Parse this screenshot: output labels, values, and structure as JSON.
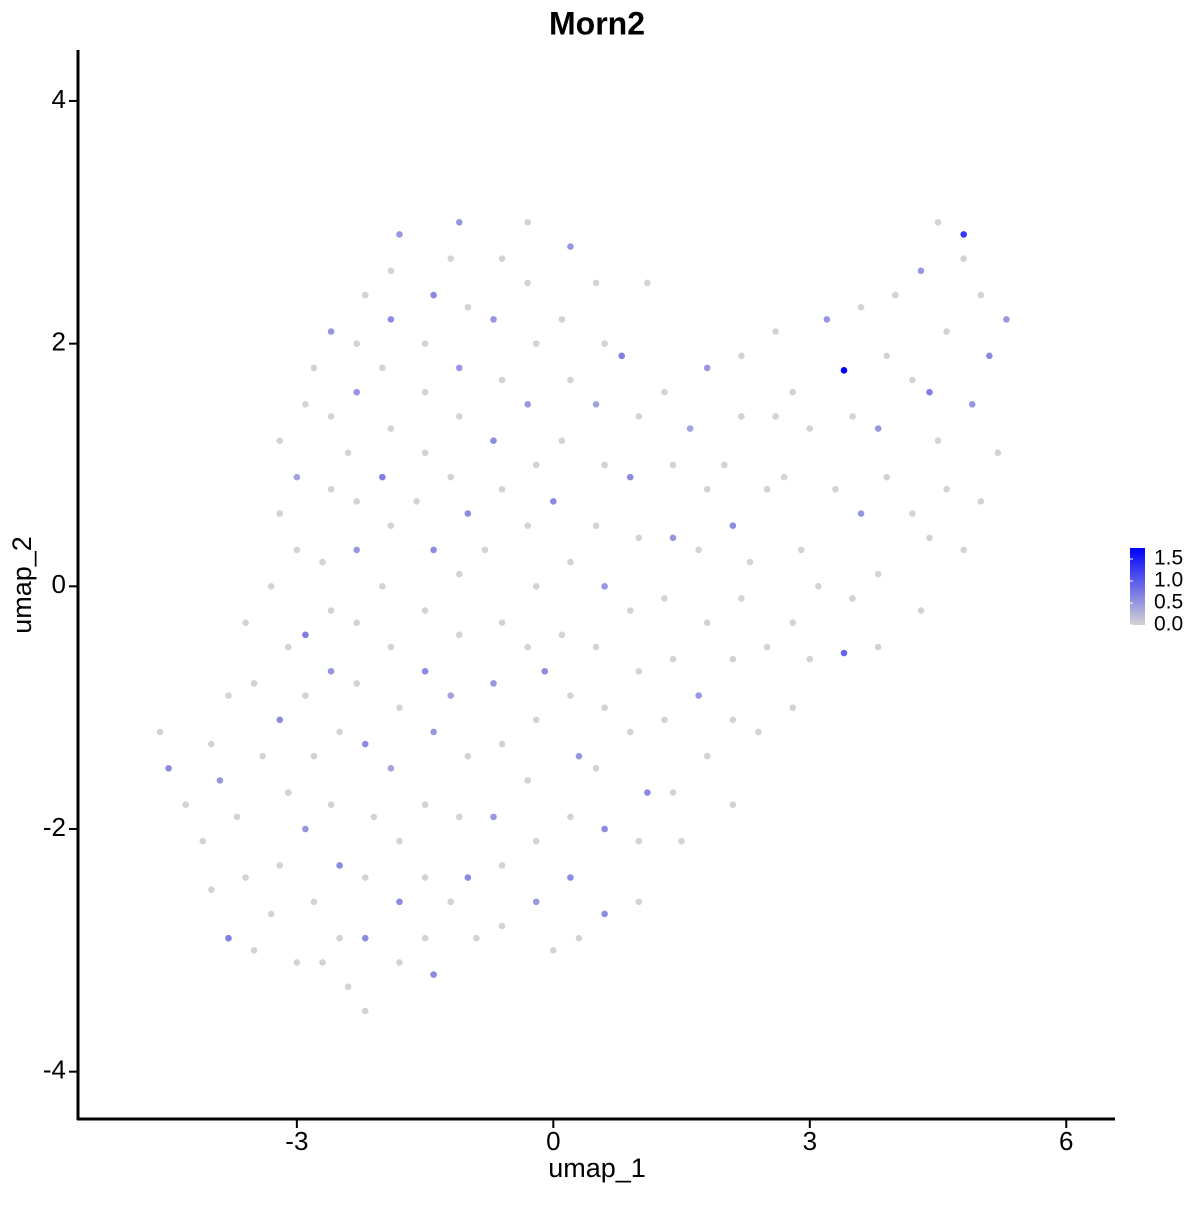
{
  "chart_data": {
    "type": "scatter",
    "title": "Morn2",
    "x_label": "umap_1",
    "y_label": "umap_2",
    "xlim": [
      -5.56,
      6.57
    ],
    "ylim": [
      -4.39,
      4.42
    ],
    "xticks": [
      -3,
      0,
      3,
      6
    ],
    "yticks": [
      -4,
      -2,
      0,
      2,
      4
    ],
    "low_color": "#d3d3d3",
    "high_color": "#0000ff",
    "color_lim": [
      0,
      1.75
    ],
    "color_ticks": [
      {
        "value": 0,
        "label": "0.0"
      },
      {
        "value": 0.5,
        "label": "0.5"
      },
      {
        "value": 1,
        "label": "1.0"
      },
      {
        "value": 1.5,
        "label": "1.5"
      }
    ],
    "x": [
      -4.6,
      -4.5,
      -4.3,
      -4.1,
      -3.9,
      -4.0,
      -3.8,
      -3.5,
      -3.6,
      -3.7,
      -3.4,
      -3.5,
      -3.6,
      -3.3,
      -3.1,
      -3.2,
      -3.1,
      -3.2,
      -3.3,
      -3.0,
      -2.8,
      -2.9,
      -2.8,
      -2.9,
      -2.9,
      -3.0,
      -3.2,
      -3.0,
      -3.2,
      -2.9,
      -2.8,
      -2.6,
      -2.6,
      -2.6,
      -2.7,
      -2.6,
      -2.6,
      -2.5,
      -2.6,
      -2.5,
      -2.5,
      -2.4,
      -2.2,
      -2.2,
      -2.2,
      -2.1,
      -2.2,
      -2.3,
      -2.3,
      -2.3,
      -2.3,
      -2.4,
      -2.3,
      -2.3,
      -2.2,
      -1.9,
      -1.8,
      -1.9,
      -2.0,
      -1.9,
      -2.0,
      -1.9,
      -2.0,
      -1.9,
      -1.8,
      -1.9,
      -1.8,
      -1.8,
      -1.8,
      -1.5,
      -1.4,
      -1.5,
      -1.5,
      -1.4,
      -1.5,
      -1.5,
      -1.4,
      -1.6,
      -1.5,
      -1.5,
      -1.5,
      -1.4,
      -1.2,
      -1.1,
      -1.0,
      -1.1,
      -1.1,
      -1.2,
      -1.0,
      -1.1,
      -1.1,
      -1.2,
      -1.0,
      -1.1,
      -1.0,
      -0.9,
      -0.6,
      -0.6,
      -0.7,
      -0.6,
      -0.7,
      -0.6,
      -0.8,
      -0.6,
      -0.7,
      -0.6,
      -0.7,
      -0.6,
      -0.3,
      -0.3,
      -0.2,
      -0.3,
      -0.2,
      -0.3,
      -0.2,
      -0.3,
      -0.1,
      -0.2,
      -0.3,
      -0.2,
      -0.2,
      0.0,
      0.3,
      0.2,
      0.2,
      0.3,
      0.2,
      0.1,
      0.2,
      0.0,
      0.1,
      0.2,
      0.1,
      0.2,
      0.5,
      0.6,
      0.5,
      0.6,
      0.5,
      0.6,
      0.5,
      0.6,
      0.5,
      0.6,
      0.6,
      1.0,
      1.0,
      1.1,
      0.9,
      1.0,
      0.9,
      1.0,
      0.9,
      1.0,
      0.8,
      1.1,
      1.3,
      1.4,
      1.4,
      1.3,
      1.4,
      1.3,
      1.4,
      1.5,
      1.8,
      1.7,
      1.8,
      1.7,
      1.8,
      1.6,
      2.0,
      2.1,
      2.2,
      2.1,
      2.1,
      2.1,
      2.4,
      2.5,
      2.3,
      2.5,
      2.2,
      1.8,
      2.2,
      2.6,
      2.6,
      2.8,
      2.7,
      2.9,
      2.8,
      2.8,
      3.0,
      3.1,
      3.3,
      3.0,
      3.2,
      3.4,
      3.6,
      3.5,
      3.6,
      3.4,
      3.5,
      3.8,
      3.8,
      3.9,
      3.8,
      3.9,
      4.0,
      4.2,
      4.2,
      4.3,
      4.4,
      4.5,
      4.3,
      4.5,
      4.6,
      4.8,
      4.8,
      4.6,
      4.8,
      4.9,
      5.0,
      5.1,
      5.0,
      5.2,
      5.3,
      4.4,
      -3.8,
      -4.0,
      -2.7,
      -1.2
    ],
    "y": [
      -1.2,
      -1.5,
      -1.8,
      -2.1,
      -1.6,
      -2.5,
      -2.9,
      -3.0,
      -2.4,
      -1.9,
      -1.4,
      -0.8,
      -0.3,
      0.0,
      -0.5,
      -1.1,
      -1.7,
      -2.3,
      -2.7,
      -3.1,
      -2.6,
      -2.0,
      -1.4,
      -0.9,
      -0.4,
      0.3,
      0.6,
      0.9,
      1.2,
      1.5,
      1.8,
      2.1,
      1.4,
      0.8,
      0.2,
      -0.2,
      -0.7,
      -1.2,
      -1.8,
      -2.3,
      -2.9,
      -3.3,
      -3.5,
      -2.9,
      -2.4,
      -1.9,
      -1.3,
      -0.8,
      -0.3,
      0.3,
      0.7,
      1.1,
      1.6,
      2.0,
      2.4,
      2.6,
      2.9,
      2.2,
      1.8,
      1.3,
      0.9,
      0.5,
      0.0,
      -0.5,
      -1.0,
      -1.5,
      -2.1,
      -2.6,
      -3.1,
      -2.9,
      -3.2,
      -2.4,
      -1.8,
      -1.2,
      -0.7,
      -0.2,
      0.3,
      0.7,
      1.1,
      1.6,
      2.0,
      2.4,
      2.7,
      3.0,
      2.3,
      1.8,
      1.4,
      0.9,
      0.6,
      0.1,
      -0.4,
      -0.9,
      -1.4,
      -1.9,
      -2.4,
      -2.9,
      -2.8,
      -2.3,
      -1.9,
      -1.3,
      -0.8,
      -0.3,
      0.3,
      0.8,
      1.2,
      1.7,
      2.2,
      2.7,
      3.0,
      2.5,
      2.0,
      1.5,
      1.0,
      0.5,
      0.0,
      -0.5,
      -0.7,
      -1.1,
      -1.6,
      -2.1,
      -2.6,
      -3.0,
      -2.9,
      -2.4,
      -1.9,
      -1.4,
      -0.9,
      -0.4,
      0.2,
      0.7,
      1.2,
      1.7,
      2.2,
      2.8,
      2.5,
      2.0,
      1.5,
      1.0,
      0.5,
      0.0,
      -0.5,
      -1.0,
      -1.5,
      -2.0,
      -2.7,
      -2.6,
      -2.1,
      -1.7,
      -1.2,
      -0.7,
      -0.2,
      0.4,
      0.9,
      1.4,
      1.9,
      2.5,
      1.6,
      1.0,
      0.4,
      -0.1,
      -0.6,
      -1.1,
      -1.7,
      -2.1,
      -1.4,
      -0.9,
      -0.3,
      0.3,
      0.8,
      1.3,
      1.0,
      0.5,
      -0.1,
      -0.6,
      -1.1,
      -1.8,
      -1.2,
      -0.5,
      0.2,
      0.8,
      1.4,
      1.8,
      1.9,
      1.4,
      2.1,
      1.6,
      0.9,
      0.3,
      -0.3,
      -1.0,
      -0.6,
      0.0,
      0.8,
      1.3,
      2.2,
      1.78,
      2.3,
      1.4,
      0.6,
      -0.55,
      -0.1,
      -0.5,
      0.1,
      0.9,
      1.3,
      1.9,
      2.4,
      1.7,
      0.6,
      -0.2,
      0.4,
      1.2,
      2.6,
      3.0,
      2.1,
      2.9,
      2.7,
      0.8,
      0.3,
      1.5,
      2.4,
      1.9,
      0.7,
      1.1,
      2.2,
      1.6,
      -0.9,
      -1.3,
      -3.1,
      -2.6
    ],
    "values": [
      0,
      0.6,
      0,
      0,
      0.5,
      0,
      0.7,
      0,
      0,
      0,
      0,
      0,
      0,
      0,
      0,
      0.6,
      0,
      0,
      0,
      0,
      0,
      0.5,
      0,
      0,
      0.7,
      0,
      0,
      0.4,
      0,
      0,
      0,
      0.5,
      0,
      0,
      0,
      0,
      0.5,
      0,
      0,
      0.6,
      0,
      0,
      0,
      0.6,
      0,
      0,
      0.6,
      0,
      0,
      0.5,
      0,
      0,
      0.5,
      0,
      0,
      0,
      0.5,
      0.6,
      0,
      0,
      0.7,
      0,
      0,
      0,
      0,
      0.4,
      0,
      0.6,
      0,
      0,
      0.6,
      0,
      0,
      0.5,
      0.6,
      0,
      0.6,
      0,
      0,
      0,
      0,
      0.6,
      0,
      0.5,
      0,
      0.5,
      0,
      0,
      0.6,
      0,
      0,
      0.4,
      0,
      0,
      0.6,
      0,
      0,
      0,
      0.5,
      0,
      0.5,
      0,
      0,
      0,
      0.6,
      0,
      0.5,
      0,
      0,
      0,
      0,
      0.5,
      0,
      0,
      0,
      0,
      0.6,
      0,
      0,
      0,
      0.5,
      0,
      0,
      0.6,
      0,
      0.5,
      0,
      0,
      0,
      0.6,
      0,
      0,
      0,
      0.5,
      0,
      0,
      0.4,
      0,
      0,
      0.5,
      0,
      0,
      0,
      0.6,
      0.6,
      0,
      0,
      0.6,
      0,
      0,
      0,
      0,
      0.6,
      0,
      0.7,
      0,
      0,
      0,
      0.5,
      0,
      0,
      0,
      0,
      0,
      0,
      0.5,
      0,
      0,
      0,
      0.4,
      0,
      0.6,
      0,
      0,
      0,
      0,
      0,
      0,
      0,
      0,
      0,
      0.5,
      0,
      0,
      0,
      0,
      0,
      0,
      0,
      0,
      0,
      0,
      0,
      0,
      0.5,
      1.75,
      0,
      0,
      0.5,
      0.9,
      0,
      0,
      0,
      0,
      0.5,
      0,
      0,
      0,
      0,
      0,
      0,
      0,
      0.5,
      0,
      0,
      1.3,
      0,
      0,
      0,
      0.5,
      0,
      0.6,
      0,
      0,
      0.5,
      0.7,
      0,
      0,
      0,
      0
    ]
  }
}
